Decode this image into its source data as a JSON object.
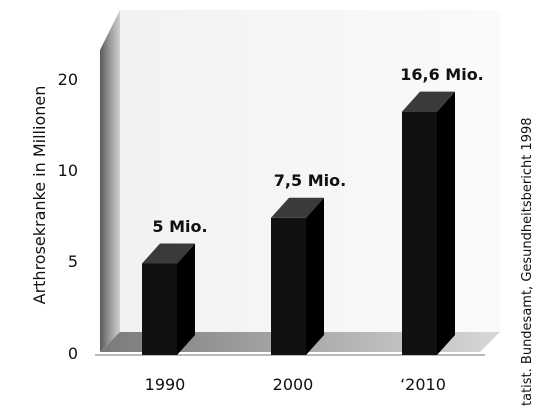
{
  "chart_data": {
    "type": "bar",
    "categories": [
      "1990",
      "2000",
      "‘2010"
    ],
    "values": [
      5,
      7.5,
      16.6
    ],
    "data_labels": [
      "5 Mio.",
      "7,5 Mio.",
      "16,6 Mio."
    ],
    "ylabel": "Arthrosekranke in Millionen",
    "yticks": [
      "0",
      "5",
      "10",
      "20"
    ],
    "source": "tatist. Bundesamt, Gesundheitsbericht 1998",
    "grid": false,
    "colors": {
      "bar": "#111111",
      "bar_top": "#3a3a3a",
      "bar_side": "#000000",
      "wall": "#bdbdbd",
      "floor": "#9a9a9a"
    }
  }
}
